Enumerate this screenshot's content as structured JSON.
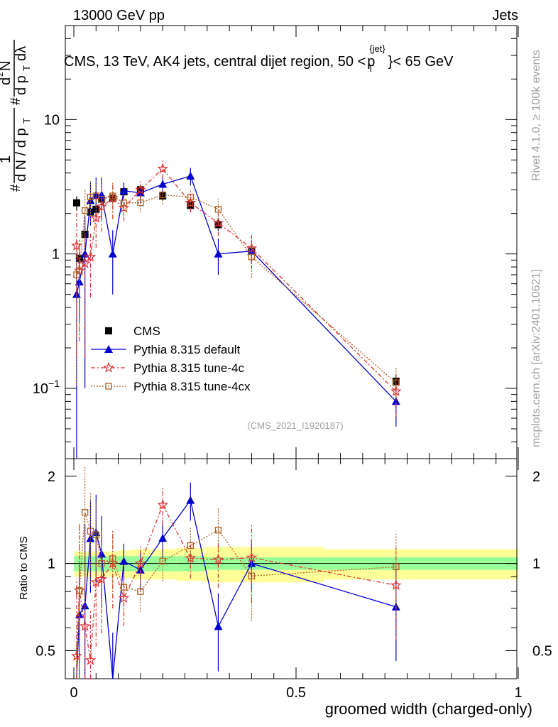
{
  "header": {
    "left": "13000 GeV pp",
    "right": "Jets",
    "side_top": "Rivet 4.1.0, ≥ 100k events",
    "side_bottom": "mcplots.cern.ch [arXiv:2401.10621]"
  },
  "chart_data": {
    "type": "line",
    "title": "CMS, 13 TeV, AK4 jets, central dijet region, 50 < p_T^{jet} < 65 GeV",
    "title_parts": {
      "main": "CMS, 13 TeV, AK4 jets, central dijet region, 50 <",
      "p": "p",
      "sub": "T",
      "sup": "{jet}",
      "tail": "}< 65 GeV"
    },
    "analysis_id": "(CMS_2021_I1920187)",
    "xlabel": "groomed width (charged-only)",
    "ylabel_parts": {
      "hash": "#",
      "one": "1",
      "den": "d N / d p",
      "denT": "T",
      "hash2": "#",
      "num2": "d",
      "sq": "2",
      "num2b": "N",
      "den2": "d p",
      "den2T": "T",
      "den2b": "dλ"
    },
    "ylabel_ratio": "Ratio to CMS",
    "xlim": [
      0,
      1
    ],
    "ylim_main": [
      0.03,
      50
    ],
    "ylim_ratio": [
      0.4,
      2.3
    ],
    "yscale": "log",
    "x_ticks": [
      {
        "v": 0,
        "label": "0"
      },
      {
        "v": 0.5,
        "label": "0.5"
      },
      {
        "v": 1,
        "label": "1"
      }
    ],
    "y_ticks_main": [
      {
        "v": 0.1,
        "base": "10",
        "exp": "−1"
      },
      {
        "v": 1,
        "base": "1",
        "exp": ""
      },
      {
        "v": 10,
        "base": "10",
        "exp": ""
      }
    ],
    "y_ticks_ratio": [
      {
        "v": 0.5,
        "label": "0.5"
      },
      {
        "v": 1,
        "label": "1"
      },
      {
        "v": 2,
        "label": "2"
      }
    ],
    "x": [
      0.0063,
      0.0125,
      0.025,
      0.0375,
      0.05,
      0.0625,
      0.0875,
      0.1125,
      0.15,
      0.2,
      0.2625,
      0.325,
      0.4,
      0.725
    ],
    "cms": [
      2.4,
      0.93,
      1.4,
      2.05,
      2.15,
      2.55,
      2.6,
      2.9,
      3.0,
      2.7,
      2.3,
      1.65,
      1.05,
      0.113
    ],
    "band_green": [
      0.06,
      0.06,
      0.06,
      0.06,
      0.06,
      0.06,
      0.06,
      0.06,
      0.06,
      0.06,
      0.06,
      0.05,
      0.05,
      0.05
    ],
    "band_yellow": [
      0.1,
      0.1,
      0.1,
      0.1,
      0.1,
      0.1,
      0.1,
      0.11,
      0.12,
      0.12,
      0.13,
      0.14,
      0.14,
      0.12
    ],
    "series": [
      {
        "name": "CMS",
        "color": "#000000",
        "marker": "square-filled",
        "dash": "",
        "values": [
          2.4,
          0.93,
          1.4,
          2.05,
          2.15,
          2.55,
          2.6,
          2.9,
          3.0,
          2.7,
          2.3,
          1.65,
          1.05,
          0.113
        ],
        "err": [
          0.12,
          0.12,
          0.1,
          0.1,
          0.1,
          0.1,
          0.08,
          0.08,
          0.08,
          0.08,
          0.1,
          0.1,
          0.12,
          0.12
        ]
      },
      {
        "name": "Pythia 8.315 default",
        "color": "#0000d0",
        "marker": "triangle-filled",
        "dash": "",
        "values": [
          0.5,
          0.62,
          1.0,
          2.5,
          2.75,
          2.75,
          1.0,
          2.95,
          2.85,
          3.3,
          3.8,
          1.0,
          1.05,
          0.08
        ],
        "err": [
          0.99,
          0.5,
          0.9,
          0.35,
          0.35,
          0.35,
          0.5,
          0.15,
          0.15,
          0.15,
          0.15,
          0.3,
          0.2,
          0.35
        ]
      },
      {
        "name": "Pythia 8.315 tune-4c",
        "color": "#e03030",
        "marker": "star-open",
        "dash": "6,3,2,3",
        "values": [
          1.15,
          0.75,
          0.85,
          0.95,
          1.85,
          2.25,
          2.6,
          2.2,
          3.0,
          4.3,
          2.4,
          1.7,
          1.1,
          0.095
        ],
        "err": [
          0.85,
          0.7,
          0.8,
          0.5,
          0.4,
          0.35,
          0.3,
          0.2,
          0.15,
          0.15,
          0.15,
          0.2,
          0.3,
          0.35
        ]
      },
      {
        "name": "Pythia 8.315 tune-4cx",
        "color": "#b06020",
        "marker": "square-open",
        "dash": "2,2",
        "values": [
          0.7,
          0.75,
          2.1,
          2.65,
          2.7,
          2.55,
          2.7,
          2.4,
          2.4,
          2.75,
          2.65,
          2.15,
          0.95,
          0.11
        ],
        "err": [
          0.85,
          0.7,
          0.45,
          0.35,
          0.3,
          0.3,
          0.25,
          0.2,
          0.15,
          0.15,
          0.15,
          0.2,
          0.3,
          0.3
        ]
      }
    ]
  }
}
